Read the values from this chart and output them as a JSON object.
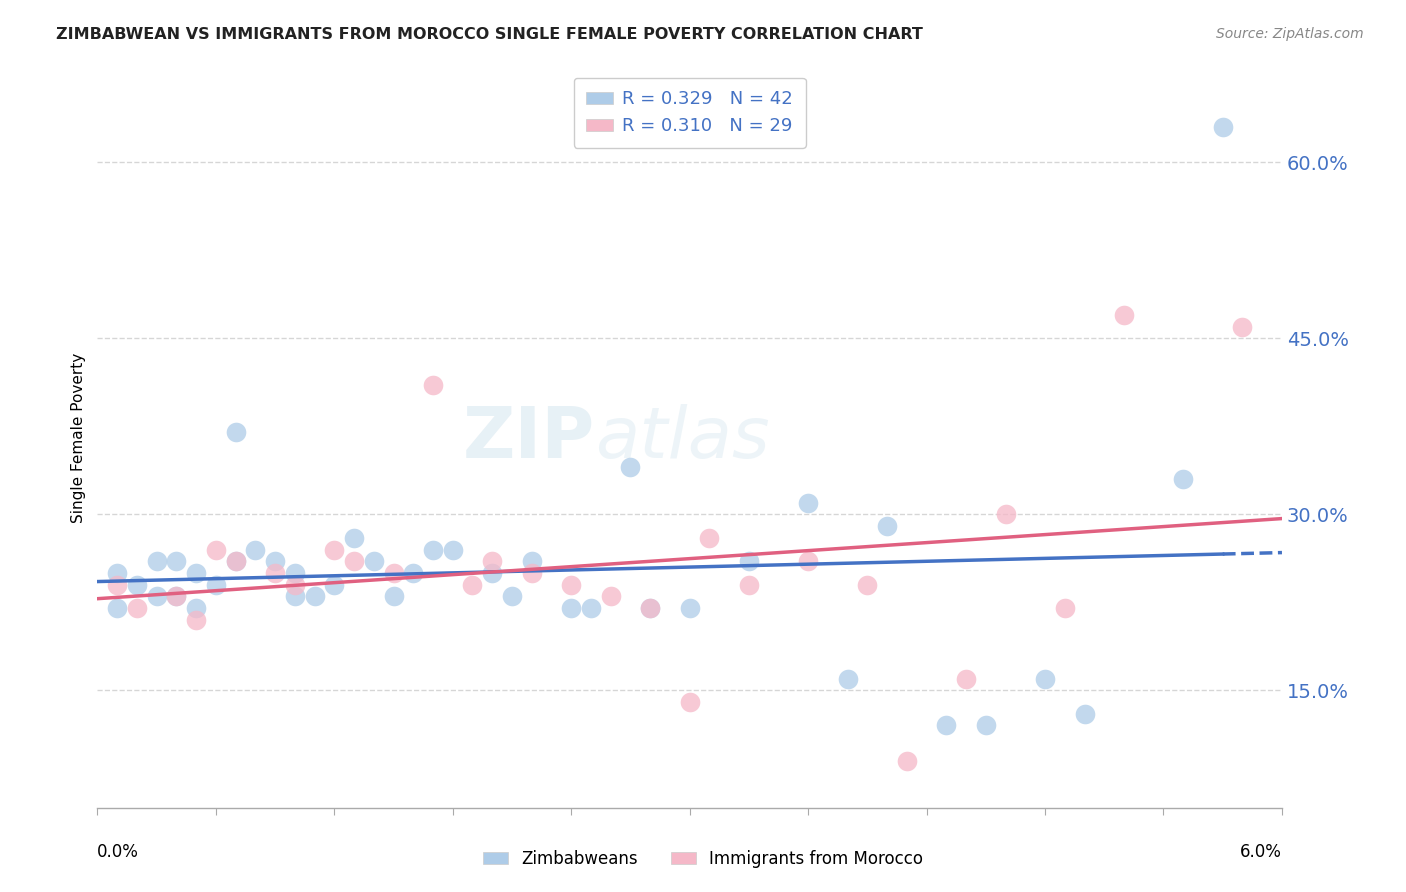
{
  "title": "ZIMBABWEAN VS IMMIGRANTS FROM MOROCCO SINGLE FEMALE POVERTY CORRELATION CHART",
  "source_text": "Source: ZipAtlas.com",
  "ylabel": "Single Female Poverty",
  "ytick_labels": [
    "15.0%",
    "30.0%",
    "45.0%",
    "60.0%"
  ],
  "ytick_values": [
    0.15,
    0.3,
    0.45,
    0.6
  ],
  "xlim": [
    0.0,
    0.06
  ],
  "ylim": [
    0.05,
    0.68
  ],
  "legend_label1": "Zimbabweans",
  "legend_label2": "Immigrants from Morocco",
  "watermark1": "ZIP",
  "watermark2": "atlas",
  "blue_color": "#aecce8",
  "pink_color": "#f5b8c8",
  "blue_line_color": "#4472c4",
  "pink_line_color": "#e06080",
  "blue_scatter_x": [
    0.001,
    0.001,
    0.002,
    0.003,
    0.003,
    0.004,
    0.004,
    0.005,
    0.005,
    0.006,
    0.007,
    0.007,
    0.008,
    0.009,
    0.01,
    0.01,
    0.011,
    0.012,
    0.013,
    0.014,
    0.015,
    0.016,
    0.017,
    0.018,
    0.02,
    0.021,
    0.022,
    0.024,
    0.025,
    0.027,
    0.028,
    0.03,
    0.033,
    0.036,
    0.038,
    0.04,
    0.043,
    0.045,
    0.048,
    0.05,
    0.055,
    0.057
  ],
  "blue_scatter_y": [
    0.25,
    0.22,
    0.24,
    0.26,
    0.23,
    0.26,
    0.23,
    0.25,
    0.22,
    0.24,
    0.37,
    0.26,
    0.27,
    0.26,
    0.25,
    0.23,
    0.23,
    0.24,
    0.28,
    0.26,
    0.23,
    0.25,
    0.27,
    0.27,
    0.25,
    0.23,
    0.26,
    0.22,
    0.22,
    0.34,
    0.22,
    0.22,
    0.26,
    0.31,
    0.16,
    0.29,
    0.12,
    0.12,
    0.16,
    0.13,
    0.33,
    0.63
  ],
  "pink_scatter_x": [
    0.001,
    0.002,
    0.004,
    0.005,
    0.006,
    0.007,
    0.009,
    0.01,
    0.012,
    0.013,
    0.015,
    0.017,
    0.019,
    0.02,
    0.022,
    0.024,
    0.026,
    0.028,
    0.03,
    0.031,
    0.033,
    0.036,
    0.039,
    0.041,
    0.044,
    0.046,
    0.049,
    0.052,
    0.058
  ],
  "pink_scatter_y": [
    0.24,
    0.22,
    0.23,
    0.21,
    0.27,
    0.26,
    0.25,
    0.24,
    0.27,
    0.26,
    0.25,
    0.41,
    0.24,
    0.26,
    0.25,
    0.24,
    0.23,
    0.22,
    0.14,
    0.28,
    0.24,
    0.26,
    0.24,
    0.09,
    0.16,
    0.3,
    0.22,
    0.47,
    0.46
  ]
}
